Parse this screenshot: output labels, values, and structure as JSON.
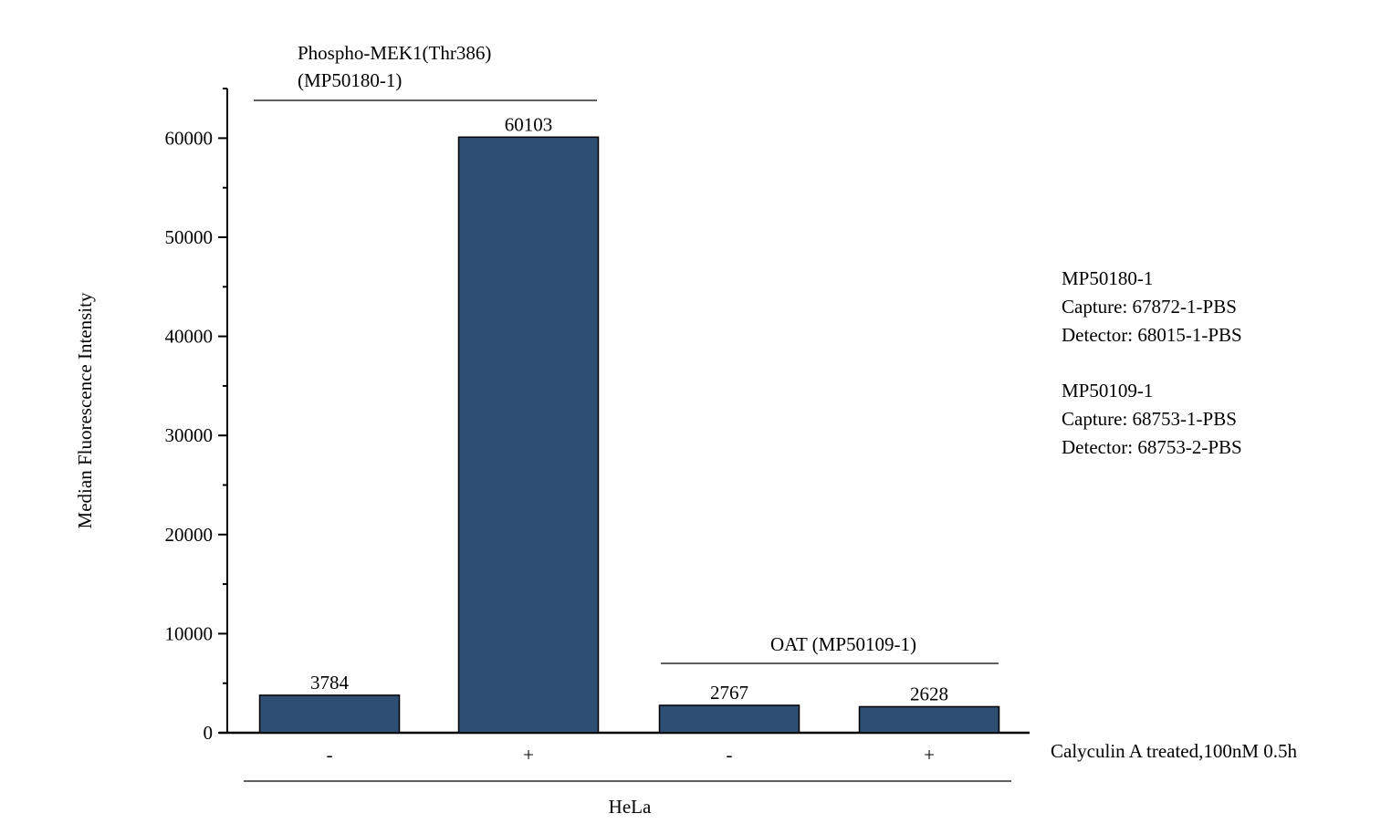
{
  "chart_data": {
    "type": "bar",
    "ylabel": "Median Fluorescence Intensity",
    "ylim": [
      0,
      65000
    ],
    "yticks": [
      0,
      10000,
      20000,
      30000,
      40000,
      50000,
      60000
    ],
    "categories": [
      "-",
      "+",
      "-",
      "+"
    ],
    "values": [
      3784,
      60103,
      2767,
      2628
    ],
    "data_labels": [
      "3784",
      "60103",
      "2767",
      "2628"
    ],
    "bar_color": "#2e4e74",
    "groups": [
      {
        "name_line1": "Phospho-MEK1(Thr386)",
        "name_line2": "(MP50180-1)"
      },
      {
        "name_line1": "OAT (MP50109-1)",
        "name_line2": ""
      }
    ],
    "treatment_label": "Calyculin A treated,100nM 0.5h",
    "cell_line": "HeLa",
    "legend_notes": [
      "MP50180-1",
      "Capture: 67872-1-PBS",
      "Detector: 68015-1-PBS",
      "MP50109-1",
      "Capture: 68753-1-PBS",
      "Detector: 68753-2-PBS"
    ]
  }
}
